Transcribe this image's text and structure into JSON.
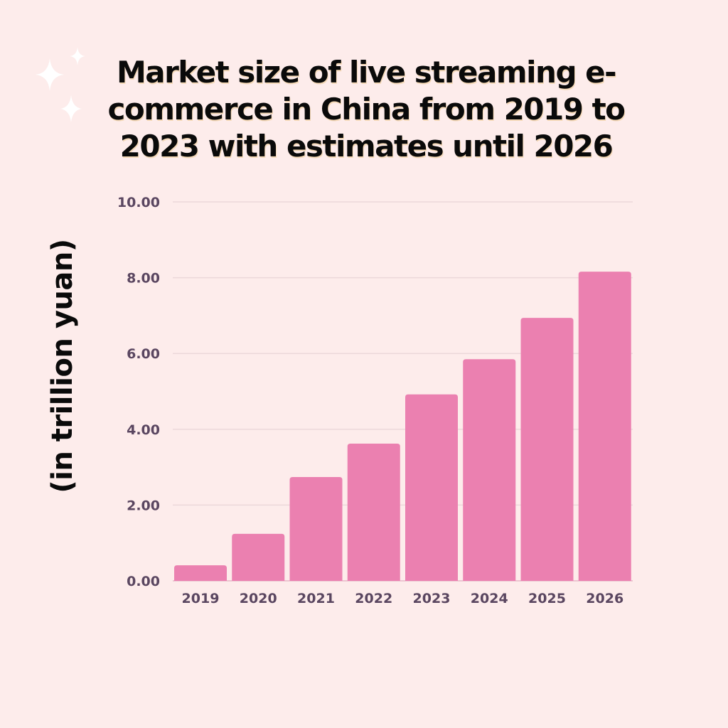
{
  "colors": {
    "background": "#fdeceb",
    "bar": "#eb80b0",
    "grid": "#ecd8da",
    "tick_text": "#5a4660",
    "title": "#0a0a0a",
    "sparkle": "#ffffff"
  },
  "decorations": {
    "icon": "sparkle-icon"
  },
  "chart_data": {
    "type": "bar",
    "title": "Market size of live streaming e-commerce in China from 2019 to 2023 with estimates until 2026",
    "title_lines": [
      "Market size of live streaming e-",
      "commerce in China from 2019 to",
      "2023 with estimates until 2026"
    ],
    "xlabel": "",
    "ylabel": "(in trillion yuan)",
    "categories": [
      "2019",
      "2020",
      "2021",
      "2022",
      "2023",
      "2024",
      "2025",
      "2026"
    ],
    "values": [
      0.41,
      1.24,
      2.74,
      3.62,
      4.92,
      5.85,
      6.94,
      8.16
    ],
    "ylim": [
      0,
      10
    ],
    "yticks": [
      "0.00",
      "2.00",
      "4.00",
      "6.00",
      "8.00",
      "10.00"
    ],
    "ytick_values": [
      0,
      2,
      4,
      6,
      8,
      10
    ],
    "grid": true,
    "legend": "none"
  }
}
